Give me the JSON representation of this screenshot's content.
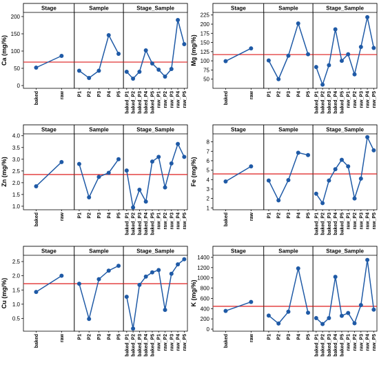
{
  "chart_data": [
    {
      "type": "line",
      "ylabel": "Ca (mg/%)",
      "color": "#1f5aa6",
      "hline": 68,
      "hline_color": "#e03030",
      "ylim": [
        -8,
        212
      ],
      "yticks": [
        0,
        50,
        100,
        150,
        200
      ],
      "facets": [
        {
          "title": "Stage",
          "categories": [
            "baked",
            "raw"
          ],
          "values": [
            52,
            86
          ]
        },
        {
          "title": "Sample",
          "categories": [
            "P1",
            "P2",
            "P3",
            "P4",
            "P5"
          ],
          "values": [
            43,
            22,
            43,
            146,
            92
          ]
        },
        {
          "title": "Stage_Sample",
          "categories": [
            "baked_P1",
            "baked_P2",
            "baked_P3",
            "baked_P4",
            "baked_P5",
            "raw_P1",
            "raw_P2",
            "raw_P3",
            "raw_P4",
            "raw_P5"
          ],
          "values": [
            40,
            20,
            40,
            102,
            64,
            46,
            26,
            48,
            190,
            120
          ]
        }
      ]
    },
    {
      "type": "line",
      "ylabel": "Mg (mg/%)",
      "color": "#1f5aa6",
      "hline": 117,
      "hline_color": "#e03030",
      "ylim": [
        25,
        232
      ],
      "yticks": [
        50,
        75,
        100,
        125,
        150,
        175,
        200,
        225
      ],
      "facets": [
        {
          "title": "Stage",
          "categories": [
            "baked",
            "raw"
          ],
          "values": [
            99,
            134
          ]
        },
        {
          "title": "Sample",
          "categories": [
            "P1",
            "P2",
            "P3",
            "P4",
            "P5"
          ],
          "values": [
            101,
            50,
            114,
            202,
            118
          ]
        },
        {
          "title": "Stage_Sample",
          "categories": [
            "baked_P1",
            "baked_P2",
            "baked_P3",
            "baked_P4",
            "baked_P5",
            "raw_P1",
            "raw_P2",
            "raw_P3",
            "raw_P4",
            "raw_P5"
          ],
          "values": [
            83,
            35,
            88,
            186,
            100,
            118,
            63,
            138,
            219,
            135
          ]
        }
      ]
    },
    {
      "type": "line",
      "ylabel": "Zn (mg/%)",
      "color": "#1f5aa6",
      "hline": 2.35,
      "hline_color": "#e03030",
      "ylim": [
        0.85,
        4.08
      ],
      "yticks": [
        {
          "value": 1,
          "label": "1.0"
        },
        1.5,
        {
          "value": 2,
          "label": "2.0"
        },
        2.5,
        {
          "value": 3,
          "label": "3.0"
        },
        3.5,
        {
          "value": 4,
          "label": "4.0"
        }
      ],
      "facets": [
        {
          "title": "Stage",
          "categories": [
            "baked",
            "raw"
          ],
          "values": [
            1.85,
            2.88
          ]
        },
        {
          "title": "Sample",
          "categories": [
            "P1",
            "P2",
            "P3",
            "P4",
            "P5"
          ],
          "values": [
            2.8,
            1.38,
            2.25,
            2.42,
            3.0
          ]
        },
        {
          "title": "Stage_Sample",
          "categories": [
            "baked_P1",
            "baked_P2",
            "baked_P3",
            "baked_P4",
            "baked_P5",
            "raw_P1",
            "raw_P2",
            "raw_P3",
            "raw_P4",
            "raw_P5"
          ],
          "values": [
            2.52,
            0.95,
            1.7,
            1.2,
            2.9,
            3.1,
            1.8,
            2.82,
            3.65,
            3.1
          ]
        }
      ]
    },
    {
      "type": "line",
      "ylabel": "Fe (mg/%)",
      "color": "#1f5aa6",
      "hline": 4.6,
      "hline_color": "#e03030",
      "ylim": [
        0.8,
        8.85
      ],
      "yticks": [
        1,
        2,
        3,
        4,
        5,
        6,
        7,
        8
      ],
      "facets": [
        {
          "title": "Stage",
          "categories": [
            "baked",
            "raw"
          ],
          "values": [
            3.8,
            5.4
          ]
        },
        {
          "title": "Sample",
          "categories": [
            "P1",
            "P2",
            "P3",
            "P4",
            "P5"
          ],
          "values": [
            3.9,
            1.8,
            3.95,
            6.85,
            6.6
          ]
        },
        {
          "title": "Stage_Sample",
          "categories": [
            "baked_P1",
            "baked_P2",
            "baked_P3",
            "baked_P4",
            "baked_P5",
            "raw_P1",
            "raw_P2",
            "raw_P3",
            "raw_P4",
            "raw_P5"
          ],
          "values": [
            2.5,
            1.5,
            3.9,
            5.1,
            6.1,
            5.4,
            2.0,
            4.1,
            8.5,
            7.1
          ]
        }
      ]
    },
    {
      "type": "line",
      "ylabel": "Cu (mg/%)",
      "color": "#1f5aa6",
      "hline": 1.72,
      "hline_color": "#e03030",
      "ylim": [
        0.05,
        2.72
      ],
      "yticks": [
        0.5,
        {
          "value": 1,
          "label": "1.0"
        },
        1.5,
        {
          "value": 2,
          "label": "2.0"
        },
        2.5
      ],
      "facets": [
        {
          "title": "Stage",
          "categories": [
            "baked",
            "raw"
          ],
          "values": [
            1.43,
            2.0
          ]
        },
        {
          "title": "Sample",
          "categories": [
            "P1",
            "P2",
            "P3",
            "P4",
            "P5"
          ],
          "values": [
            1.72,
            0.48,
            1.88,
            2.18,
            2.35
          ]
        },
        {
          "title": "Stage_Sample",
          "categories": [
            "baked_P1",
            "baked_P2",
            "baked_P3",
            "baked_P4",
            "baked_P5",
            "raw_P1",
            "raw_P2",
            "raw_P3",
            "raw_P4",
            "raw_P5"
          ],
          "values": [
            1.26,
            0.14,
            1.68,
            1.97,
            2.12,
            2.2,
            0.8,
            2.07,
            2.4,
            2.58
          ]
        }
      ]
    },
    {
      "type": "line",
      "ylabel": "K (mg/%)",
      "color": "#1f5aa6",
      "hline": 445,
      "hline_color": "#e03030",
      "ylim": [
        -40,
        1440
      ],
      "yticks": [
        0,
        200,
        400,
        600,
        800,
        1000,
        1200,
        1400
      ],
      "facets": [
        {
          "title": "Stage",
          "categories": [
            "baked",
            "raw"
          ],
          "values": [
            355,
            530
          ]
        },
        {
          "title": "Sample",
          "categories": [
            "P1",
            "P2",
            "P3",
            "P4",
            "P5"
          ],
          "values": [
            265,
            110,
            340,
            1185,
            320
          ]
        },
        {
          "title": "Stage_Sample",
          "categories": [
            "baked_P1",
            "baked_P2",
            "baked_P3",
            "baked_P4",
            "baked_P5",
            "raw_P1",
            "raw_P2",
            "raw_P3",
            "raw_P4",
            "raw_P5"
          ],
          "values": [
            215,
            100,
            215,
            1020,
            260,
            315,
            115,
            470,
            1350,
            380
          ]
        }
      ]
    }
  ]
}
